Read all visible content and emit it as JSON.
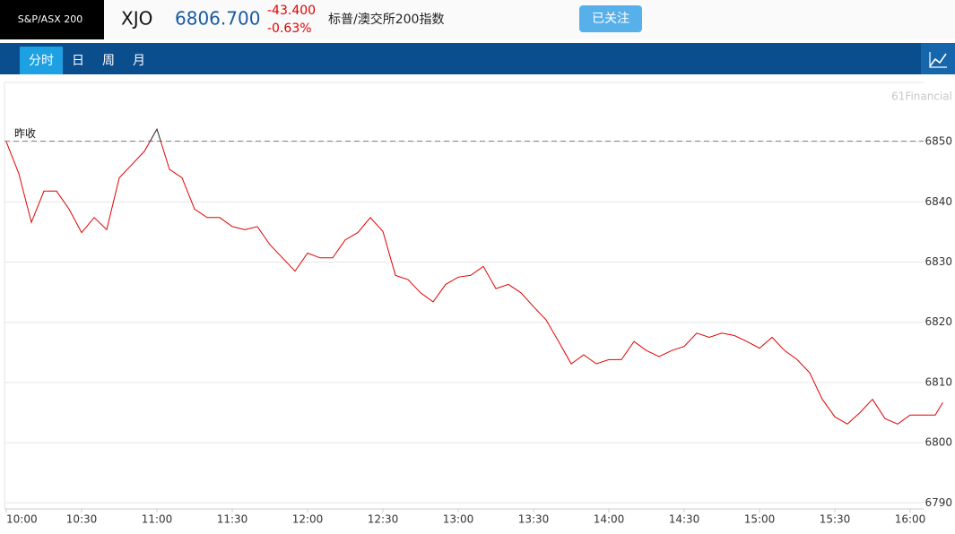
{
  "header": {
    "index_label": "S&P/ASX 200",
    "symbol": "XJO",
    "price": "6806.700",
    "change": "-43.400",
    "change_percent": "-0.63%",
    "name": "标普/澳交所200指数",
    "follow_button": "已关注"
  },
  "tabs": [
    "分时",
    "日",
    "周",
    "月"
  ],
  "watermark": "61Financial",
  "chart_data": {
    "type": "line",
    "prev_close_label": "昨收",
    "prev_close": 6850.1,
    "x": [
      600,
      605,
      610,
      615,
      620,
      625,
      630,
      635,
      640,
      645,
      650,
      655,
      660,
      665,
      670,
      675,
      680,
      685,
      690,
      695,
      700,
      705,
      710,
      715,
      720,
      725,
      730,
      735,
      740,
      745,
      750,
      755,
      760,
      765,
      770,
      775,
      780,
      785,
      790,
      795,
      800,
      805,
      810,
      815,
      820,
      825,
      830,
      835,
      840,
      845,
      850,
      855,
      860,
      865,
      870,
      875,
      880,
      885,
      890,
      895,
      900,
      905,
      910,
      915,
      920,
      925,
      930,
      935,
      940,
      945,
      950,
      955,
      960,
      965,
      970,
      973
    ],
    "series": [
      {
        "name": "XJO",
        "color": "#e00000",
        "above_color": "#222222",
        "values": [
          6850,
          6844.7,
          6836.6,
          6841.8,
          6841.8,
          6838.8,
          6834.9,
          6837.4,
          6835.4,
          6844,
          6846.2,
          6848.4,
          6852.1,
          6845.4,
          6844,
          6838.8,
          6837.4,
          6837.4,
          6835.9,
          6835.4,
          6835.9,
          6832.9,
          6830.7,
          6828.5,
          6831.5,
          6830.7,
          6830.7,
          6833.7,
          6834.9,
          6837.4,
          6835.1,
          6827.8,
          6827.1,
          6824.9,
          6823.4,
          6826.3,
          6827.5,
          6827.8,
          6829.3,
          6825.6,
          6826.3,
          6824.9,
          6822.6,
          6820.4,
          6816.8,
          6813.1,
          6814.6,
          6813.1,
          6813.8,
          6813.8,
          6816.8,
          6815.3,
          6814.3,
          6815.3,
          6816,
          6818.2,
          6817.5,
          6818.2,
          6817.8,
          6816.8,
          6815.7,
          6817.5,
          6815.3,
          6813.8,
          6811.6,
          6807.2,
          6804.3,
          6803.1,
          6805,
          6807.2,
          6804,
          6803.1,
          6804.6,
          6804.6,
          6804.6,
          6806.7
        ]
      }
    ],
    "xlim": [
      600,
      975
    ],
    "xticks": [
      {
        "value": 600,
        "label": "10:00"
      },
      {
        "value": 630,
        "label": "10:30"
      },
      {
        "value": 660,
        "label": "11:00"
      },
      {
        "value": 690,
        "label": "11:30"
      },
      {
        "value": 720,
        "label": "12:00"
      },
      {
        "value": 750,
        "label": "12:30"
      },
      {
        "value": 780,
        "label": "13:00"
      },
      {
        "value": 810,
        "label": "13:30"
      },
      {
        "value": 840,
        "label": "14:00"
      },
      {
        "value": 870,
        "label": "14:30"
      },
      {
        "value": 900,
        "label": "15:00"
      },
      {
        "value": 930,
        "label": "15:30"
      },
      {
        "value": 960,
        "label": "16:00"
      }
    ],
    "ylim": [
      6789,
      6860
    ],
    "yticks": [
      6790,
      6800,
      6810,
      6820,
      6830,
      6840,
      6850
    ],
    "grid": true
  }
}
